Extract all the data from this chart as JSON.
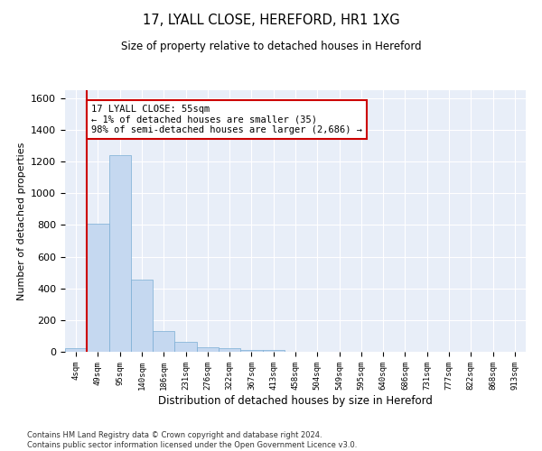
{
  "title1": "17, LYALL CLOSE, HEREFORD, HR1 1XG",
  "title2": "Size of property relative to detached houses in Hereford",
  "xlabel": "Distribution of detached houses by size in Hereford",
  "ylabel": "Number of detached properties",
  "footnote": "Contains HM Land Registry data © Crown copyright and database right 2024.\nContains public sector information licensed under the Open Government Licence v3.0.",
  "bar_labels": [
    "4sqm",
    "49sqm",
    "95sqm",
    "140sqm",
    "186sqm",
    "231sqm",
    "276sqm",
    "322sqm",
    "367sqm",
    "413sqm",
    "458sqm",
    "504sqm",
    "549sqm",
    "595sqm",
    "640sqm",
    "686sqm",
    "731sqm",
    "777sqm",
    "822sqm",
    "868sqm",
    "913sqm"
  ],
  "bar_values": [
    25,
    810,
    1240,
    455,
    130,
    60,
    27,
    20,
    13,
    10,
    0,
    0,
    0,
    0,
    0,
    0,
    0,
    0,
    0,
    0,
    0
  ],
  "bar_color": "#c5d8f0",
  "bar_edge_color": "#7aadd4",
  "ylim": [
    0,
    1650
  ],
  "yticks": [
    0,
    200,
    400,
    600,
    800,
    1000,
    1200,
    1400,
    1600
  ],
  "property_line_x": 0.5,
  "property_sqm": 55,
  "annotation_text": "17 LYALL CLOSE: 55sqm\n← 1% of detached houses are smaller (35)\n98% of semi-detached houses are larger (2,686) →",
  "annotation_box_color": "#ffffff",
  "annotation_box_edge_color": "#cc0000",
  "property_line_color": "#cc0000",
  "bg_color": "#e8eef8",
  "fig_bg_color": "#ffffff"
}
